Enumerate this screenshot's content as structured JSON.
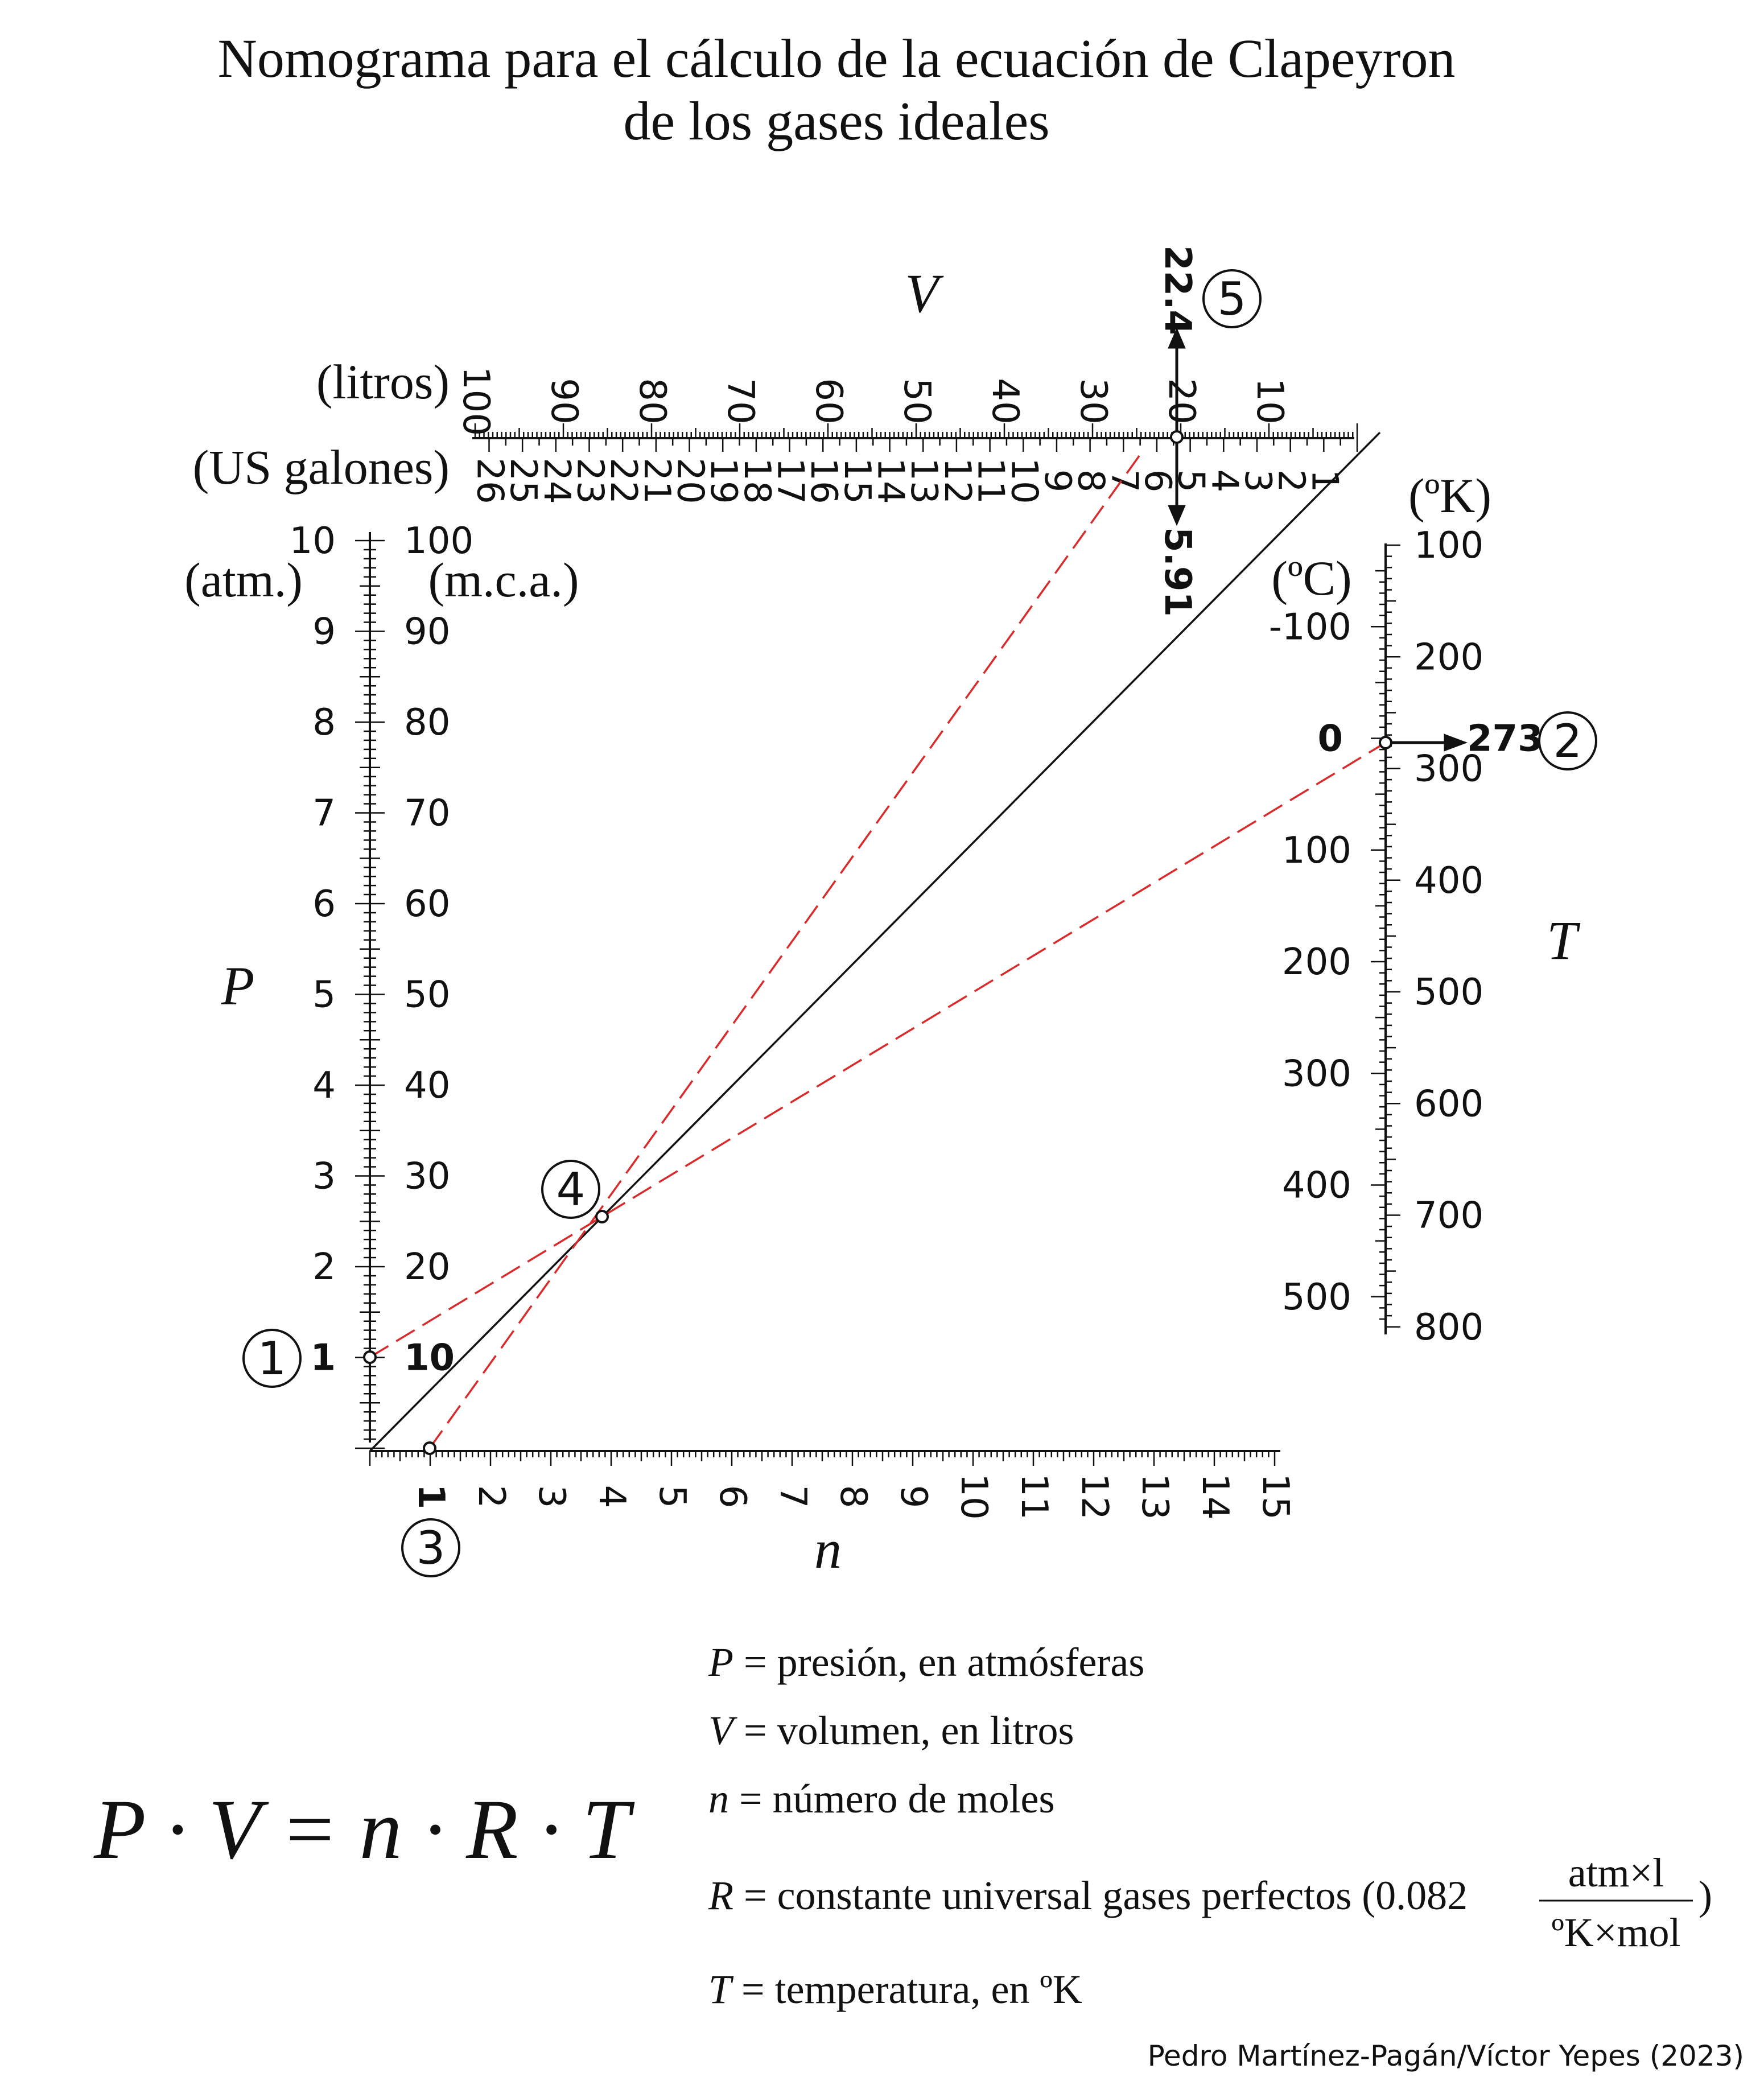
{
  "title": {
    "line1": "Nomograma para el cálculo de la ecuación de Clapeyron",
    "line2": "de los gases ideales"
  },
  "axes": {
    "V": {
      "name": "V",
      "unit_primary": "(litros)",
      "unit_secondary": "(US galones)",
      "ticks_primary": [
        "100",
        "90",
        "80",
        "70",
        "60",
        "50",
        "40",
        "30",
        "20",
        "10"
      ],
      "ticks_secondary": [
        "26",
        "25",
        "24",
        "23",
        "22",
        "21",
        "20",
        "19",
        "18",
        "17",
        "16",
        "15",
        "14",
        "13",
        "12",
        "11",
        "10",
        "9",
        "8",
        "7",
        "6",
        "5",
        "4",
        "3",
        "2",
        "1"
      ],
      "highlight_primary": "22.4",
      "highlight_secondary": "5.91",
      "point_label": "5"
    },
    "P": {
      "name": "P",
      "unit_left": "(atm.)",
      "unit_right": "(m.c.a.)",
      "ticks_left": [
        "10",
        "9",
        "8",
        "7",
        "6",
        "5",
        "4",
        "3",
        "2"
      ],
      "ticks_right": [
        "100",
        "90",
        "80",
        "70",
        "60",
        "50",
        "40",
        "30",
        "20"
      ],
      "highlight_left": "1",
      "highlight_right": "10",
      "point_label": "1"
    },
    "T": {
      "name": "T",
      "unit_left": "(ºC)",
      "unit_right": "(ºK)",
      "ticks_left": [
        "-100",
        "100",
        "200",
        "300",
        "400",
        "500"
      ],
      "ticks_right": [
        "100",
        "200",
        "300",
        "400",
        "500",
        "600",
        "700",
        "800"
      ],
      "highlight_left": "0",
      "highlight_right": "273",
      "point_label": "2"
    },
    "n": {
      "name": "n",
      "ticks": [
        "2",
        "3",
        "4",
        "5",
        "6",
        "7",
        "8",
        "9",
        "10",
        "11",
        "12",
        "13",
        "14",
        "15"
      ],
      "highlight": "1",
      "point_label": "3"
    }
  },
  "pivot_label": "4",
  "formula": {
    "main": "P · V = n · R · T"
  },
  "legend": [
    {
      "var": "P",
      "text": " = presión, en atmósferas"
    },
    {
      "var": "V",
      "text": " = volumen, en litros"
    },
    {
      "var": "n",
      "text": " = número de moles"
    },
    {
      "var": "R",
      "text": " = constante universal gases perfectos (0.082"
    },
    {
      "var": "T",
      "text": " = temperatura, en ºK"
    }
  ],
  "r_units": {
    "numerator": "atm×l",
    "denominator": "ºK×mol",
    "close": ")"
  },
  "credit": "Pedro Martínez-Pagán/Víctor Yepes (2023)",
  "colors": {
    "ink": "#111111",
    "construction": "#d92b2b"
  }
}
